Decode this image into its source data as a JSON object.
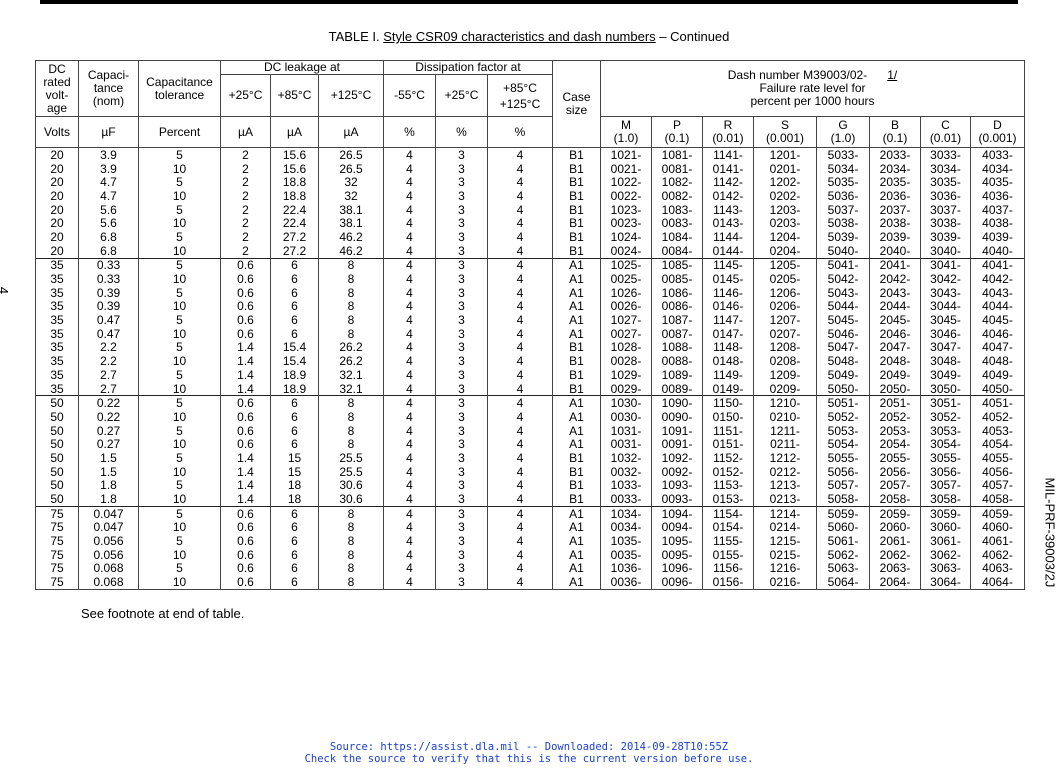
{
  "title_prefix": "TABLE I.  ",
  "title_underlined": "Style CSR09 characteristics and dash numbers",
  "title_suffix": " – Continued",
  "page_number": "4",
  "doc_id": "MIL-PRF-39003/2J",
  "header": {
    "voltage": "DC rated volt-age",
    "capacitance": "Capaci-tance (nom)",
    "tolerance": "Capacitance tolerance",
    "leakage": "DC leakage at",
    "dissipation": "Dissipation factor at",
    "case": "Case size",
    "dash_line1": "Dash number M39003/02-",
    "dash_footnote": "1/",
    "dash_line2": "Failure rate level for",
    "dash_line3": "percent per 1000 hours",
    "temps": [
      "+25°C",
      "+85°C",
      "+125°C",
      "-55°C",
      "+25°C",
      "+85°C +125°C"
    ],
    "units": [
      "Volts",
      "µF",
      "Percent",
      "µA",
      "µA",
      "µA",
      "%",
      "%",
      "%"
    ],
    "levels": [
      [
        "M",
        "(1.0)"
      ],
      [
        "P",
        "(0.1)"
      ],
      [
        "R",
        "(0.01)"
      ],
      [
        "S",
        "(0.001)"
      ],
      [
        "G",
        "(1.0)"
      ],
      [
        "B",
        "(0.1)"
      ],
      [
        "C",
        "(0.01)"
      ],
      [
        "D",
        "(0.001)"
      ]
    ]
  },
  "rows": [
    [
      "20",
      "3.9",
      "5",
      "2",
      "15.6",
      "26.5",
      "4",
      "3",
      "4",
      "B1",
      "1021-",
      "1081-",
      "1141-",
      "1201-",
      "5033-",
      "2033-",
      "3033-",
      "4033-"
    ],
    [
      "20",
      "3.9",
      "10",
      "2",
      "15.6",
      "26.5",
      "4",
      "3",
      "4",
      "B1",
      "0021-",
      "0081-",
      "0141-",
      "0201-",
      "5034-",
      "2034-",
      "3034-",
      "4034-"
    ],
    [
      "20",
      "4.7",
      "5",
      "2",
      "18.8",
      "32",
      "4",
      "3",
      "4",
      "B1",
      "1022-",
      "1082-",
      "1142-",
      "1202-",
      "5035-",
      "2035-",
      "3035-",
      "4035-"
    ],
    [
      "20",
      "4.7",
      "10",
      "2",
      "18.8",
      "32",
      "4",
      "3",
      "4",
      "B1",
      "0022-",
      "0082-",
      "0142-",
      "0202-",
      "5036-",
      "2036-",
      "3036-",
      "4036-"
    ],
    [
      "20",
      "5.6",
      "5",
      "2",
      "22.4",
      "38.1",
      "4",
      "3",
      "4",
      "B1",
      "1023-",
      "1083-",
      "1143-",
      "1203-",
      "5037-",
      "2037-",
      "3037-",
      "4037-"
    ],
    [
      "20",
      "5.6",
      "10",
      "2",
      "22.4",
      "38.1",
      "4",
      "3",
      "4",
      "B1",
      "0023-",
      "0083-",
      "0143-",
      "0203-",
      "5038-",
      "2038-",
      "3038-",
      "4038-"
    ],
    [
      "20",
      "6.8",
      "5",
      "2",
      "27.2",
      "46.2",
      "4",
      "3",
      "4",
      "B1",
      "1024-",
      "1084-",
      "1144-",
      "1204-",
      "5039-",
      "2039-",
      "3039-",
      "4039-"
    ],
    [
      "20",
      "6.8",
      "10",
      "2",
      "27.2",
      "46.2",
      "4",
      "3",
      "4",
      "B1",
      "0024-",
      "0084-",
      "0144-",
      "0204-",
      "5040-",
      "2040-",
      "3040-",
      "4040-"
    ],
    [
      "35",
      "0.33",
      "5",
      "0.6",
      "6",
      "8",
      "4",
      "3",
      "4",
      "A1",
      "1025-",
      "1085-",
      "1145-",
      "1205-",
      "5041-",
      "2041-",
      "3041-",
      "4041-"
    ],
    [
      "35",
      "0.33",
      "10",
      "0.6",
      "6",
      "8",
      "4",
      "3",
      "4",
      "A1",
      "0025-",
      "0085-",
      "0145-",
      "0205-",
      "5042-",
      "2042-",
      "3042-",
      "4042-"
    ],
    [
      "35",
      "0.39",
      "5",
      "0.6",
      "6",
      "8",
      "4",
      "3",
      "4",
      "A1",
      "1026-",
      "1086-",
      "1146-",
      "1206-",
      "5043-",
      "2043-",
      "3043-",
      "4043-"
    ],
    [
      "35",
      "0.39",
      "10",
      "0.6",
      "6",
      "8",
      "4",
      "3",
      "4",
      "A1",
      "0026-",
      "0086-",
      "0146-",
      "0206-",
      "5044-",
      "2044-",
      "3044-",
      "4044-"
    ],
    [
      "35",
      "0.47",
      "5",
      "0.6",
      "6",
      "8",
      "4",
      "3",
      "4",
      "A1",
      "1027-",
      "1087-",
      "1147-",
      "1207-",
      "5045-",
      "2045-",
      "3045-",
      "4045-"
    ],
    [
      "35",
      "0.47",
      "10",
      "0.6",
      "6",
      "8",
      "4",
      "3",
      "4",
      "A1",
      "0027-",
      "0087-",
      "0147-",
      "0207-",
      "5046-",
      "2046-",
      "3046-",
      "4046-"
    ],
    [
      "35",
      "2.2",
      "5",
      "1.4",
      "15.4",
      "26.2",
      "4",
      "3",
      "4",
      "B1",
      "1028-",
      "1088-",
      "1148-",
      "1208-",
      "5047-",
      "2047-",
      "3047-",
      "4047-"
    ],
    [
      "35",
      "2.2",
      "10",
      "1.4",
      "15.4",
      "26.2",
      "4",
      "3",
      "4",
      "B1",
      "0028-",
      "0088-",
      "0148-",
      "0208-",
      "5048-",
      "2048-",
      "3048-",
      "4048-"
    ],
    [
      "35",
      "2.7",
      "5",
      "1.4",
      "18.9",
      "32.1",
      "4",
      "3",
      "4",
      "B1",
      "1029-",
      "1089-",
      "1149-",
      "1209-",
      "5049-",
      "2049-",
      "3049-",
      "4049-"
    ],
    [
      "35",
      "2.7",
      "10",
      "1.4",
      "18.9",
      "32.1",
      "4",
      "3",
      "4",
      "B1",
      "0029-",
      "0089-",
      "0149-",
      "0209-",
      "5050-",
      "2050-",
      "3050-",
      "4050-"
    ],
    [
      "50",
      "0.22",
      "5",
      "0.6",
      "6",
      "8",
      "4",
      "3",
      "4",
      "A1",
      "1030-",
      "1090-",
      "1150-",
      "1210-",
      "5051-",
      "2051-",
      "3051-",
      "4051-"
    ],
    [
      "50",
      "0.22",
      "10",
      "0.6",
      "6",
      "8",
      "4",
      "3",
      "4",
      "A1",
      "0030-",
      "0090-",
      "0150-",
      "0210-",
      "5052-",
      "2052-",
      "3052-",
      "4052-"
    ],
    [
      "50",
      "0.27",
      "5",
      "0.6",
      "6",
      "8",
      "4",
      "3",
      "4",
      "A1",
      "1031-",
      "1091-",
      "1151-",
      "1211-",
      "5053-",
      "2053-",
      "3053-",
      "4053-"
    ],
    [
      "50",
      "0.27",
      "10",
      "0.6",
      "6",
      "8",
      "4",
      "3",
      "4",
      "A1",
      "0031-",
      "0091-",
      "0151-",
      "0211-",
      "5054-",
      "2054-",
      "3054-",
      "4054-"
    ],
    [
      "50",
      "1.5",
      "5",
      "1.4",
      "15",
      "25.5",
      "4",
      "3",
      "4",
      "B1",
      "1032-",
      "1092-",
      "1152-",
      "1212-",
      "5055-",
      "2055-",
      "3055-",
      "4055-"
    ],
    [
      "50",
      "1.5",
      "10",
      "1.4",
      "15",
      "25.5",
      "4",
      "3",
      "4",
      "B1",
      "0032-",
      "0092-",
      "0152-",
      "0212-",
      "5056-",
      "2056-",
      "3056-",
      "4056-"
    ],
    [
      "50",
      "1.8",
      "5",
      "1.4",
      "18",
      "30.6",
      "4",
      "3",
      "4",
      "B1",
      "1033-",
      "1093-",
      "1153-",
      "1213-",
      "5057-",
      "2057-",
      "3057-",
      "4057-"
    ],
    [
      "50",
      "1.8",
      "10",
      "1.4",
      "18",
      "30.6",
      "4",
      "3",
      "4",
      "B1",
      "0033-",
      "0093-",
      "0153-",
      "0213-",
      "5058-",
      "2058-",
      "3058-",
      "4058-"
    ],
    [
      "75",
      "0.047",
      "5",
      "0.6",
      "6",
      "8",
      "4",
      "3",
      "4",
      "A1",
      "1034-",
      "1094-",
      "1154-",
      "1214-",
      "5059-",
      "2059-",
      "3059-",
      "4059-"
    ],
    [
      "75",
      "0.047",
      "10",
      "0.6",
      "6",
      "8",
      "4",
      "3",
      "4",
      "A1",
      "0034-",
      "0094-",
      "0154-",
      "0214-",
      "5060-",
      "2060-",
      "3060-",
      "4060-"
    ],
    [
      "75",
      "0.056",
      "5",
      "0.6",
      "6",
      "8",
      "4",
      "3",
      "4",
      "A1",
      "1035-",
      "1095-",
      "1155-",
      "1215-",
      "5061-",
      "2061-",
      "3061-",
      "4061-"
    ],
    [
      "75",
      "0.056",
      "10",
      "0.6",
      "6",
      "8",
      "4",
      "3",
      "4",
      "A1",
      "0035-",
      "0095-",
      "0155-",
      "0215-",
      "5062-",
      "2062-",
      "3062-",
      "4062-"
    ],
    [
      "75",
      "0.068",
      "5",
      "0.6",
      "6",
      "8",
      "4",
      "3",
      "4",
      "A1",
      "1036-",
      "1096-",
      "1156-",
      "1216-",
      "5063-",
      "2063-",
      "3063-",
      "4063-"
    ],
    [
      "75",
      "0.068",
      "10",
      "0.6",
      "6",
      "8",
      "4",
      "3",
      "4",
      "A1",
      "0036-",
      "0096-",
      "0156-",
      "0216-",
      "5064-",
      "2064-",
      "3064-",
      "4064-"
    ]
  ],
  "footnote": "See footnote at end of table.",
  "source_line1": "Source: https://assist.dla.mil -- Downloaded: 2014-09-28T10:55Z",
  "source_line2": "Check the source to verify that this is the current version before use.",
  "colors": {
    "source_text": "#1a3fcf"
  }
}
